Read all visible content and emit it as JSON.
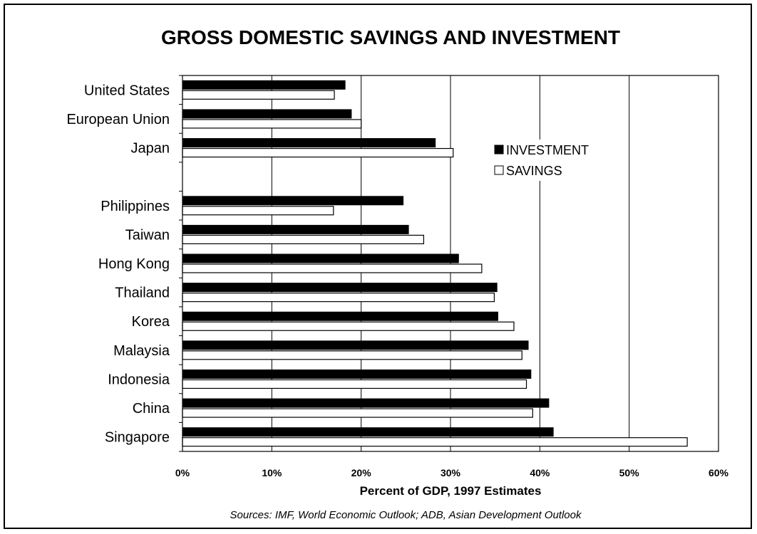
{
  "chart_data": {
    "type": "bar",
    "orientation": "horizontal",
    "title": "GROSS DOMESTIC SAVINGS AND INVESTMENT",
    "xlabel": "Percent of GDP, 1997 Estimates",
    "ylabel": "",
    "source_note": "Sources: IMF, World Economic Outlook; ADB, Asian Development Outlook",
    "categories": [
      "United States",
      "European Union",
      "Japan",
      "",
      "Philippines",
      "Taiwan",
      "Hong Kong",
      "Thailand",
      "Korea",
      "Malaysia",
      "Indonesia",
      "China",
      "Singapore"
    ],
    "series": [
      {
        "name": "INVESTMENT",
        "color": "#000000",
        "values": [
          18.2,
          18.9,
          28.3,
          null,
          24.7,
          25.3,
          30.9,
          35.2,
          35.3,
          38.7,
          39.0,
          41.0,
          41.5
        ]
      },
      {
        "name": "SAVINGS",
        "color": "#ffffff",
        "values": [
          17.0,
          20.0,
          30.3,
          null,
          16.9,
          27.0,
          33.5,
          34.9,
          37.1,
          38.0,
          38.5,
          39.2,
          56.5
        ]
      }
    ],
    "xlim": [
      0,
      60
    ],
    "xticks": [
      "0%",
      "10%",
      "20%",
      "30%",
      "40%",
      "50%",
      "60%"
    ],
    "grid": true,
    "legend_position": "upper-right inside plot"
  }
}
